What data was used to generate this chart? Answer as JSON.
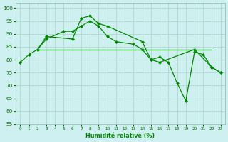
{
  "background_color": "#cff0f0",
  "grid_color": "#b0d8cc",
  "line_color": "#00aa00",
  "xlabel": "Humidité relative (%)",
  "ylim": [
    55,
    102
  ],
  "xlim": [
    -0.5,
    23.5
  ],
  "yticks": [
    55,
    60,
    65,
    70,
    75,
    80,
    85,
    90,
    95,
    100
  ],
  "xticks": [
    0,
    1,
    2,
    3,
    4,
    5,
    6,
    7,
    8,
    9,
    10,
    11,
    12,
    13,
    14,
    15,
    16,
    17,
    18,
    19,
    20,
    21,
    22,
    23
  ],
  "line1_x": [
    0,
    1,
    2,
    3,
    6,
    7,
    8,
    9,
    10,
    14,
    15,
    16,
    17,
    18,
    19,
    20,
    21,
    22,
    23
  ],
  "line1_y": [
    79,
    82,
    84,
    89,
    88,
    96,
    97,
    94,
    93,
    87,
    80,
    81,
    79,
    71,
    64,
    83,
    82,
    77,
    75
  ],
  "line2_x": [
    2,
    3,
    4,
    5,
    6,
    7,
    8,
    9,
    10,
    11,
    12,
    13,
    14,
    15,
    16,
    17,
    18,
    19,
    20,
    21,
    22
  ],
  "line2_y": [
    84,
    84,
    84,
    84,
    84,
    84,
    84,
    84,
    84,
    84,
    84,
    84,
    84,
    84,
    84,
    84,
    84,
    84,
    84,
    84,
    84
  ],
  "line3_x": [
    2,
    3,
    5,
    6,
    7,
    8,
    9,
    10,
    11,
    13,
    14,
    15,
    16,
    20,
    22,
    23
  ],
  "line3_y": [
    84,
    88,
    91,
    91,
    93,
    95,
    93,
    89,
    87,
    86,
    84,
    80,
    79,
    84,
    77,
    75
  ]
}
